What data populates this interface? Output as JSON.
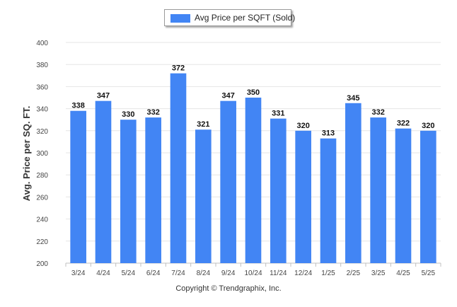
{
  "legend": {
    "label": "Avg Price per SQFT (Sold)"
  },
  "footer": {
    "copyright": "Copyright © Trendgraphix, Inc."
  },
  "colors": {
    "bar": "#4285f4",
    "grid": "#e6e6e6",
    "axis": "#c0c0c0",
    "tick_text": "#444444"
  },
  "chart_data": {
    "type": "bar",
    "title": "",
    "xlabel": "",
    "ylabel": "Avg. Price per SQ. FT.",
    "categories": [
      "3/24",
      "4/24",
      "5/24",
      "6/24",
      "7/24",
      "8/24",
      "9/24",
      "10/24",
      "11/24",
      "12/24",
      "1/25",
      "2/25",
      "3/25",
      "4/25",
      "5/25"
    ],
    "series": [
      {
        "name": "Avg Price per SQFT (Sold)",
        "values": [
          338,
          347,
          330,
          332,
          372,
          321,
          347,
          350,
          331,
          320,
          313,
          345,
          332,
          322,
          320
        ]
      }
    ],
    "ylim": [
      200,
      400
    ],
    "yticks": [
      200,
      220,
      240,
      260,
      280,
      300,
      320,
      340,
      360,
      380,
      400
    ],
    "grid": true,
    "data_labels": true,
    "legend_position": "top-center"
  }
}
